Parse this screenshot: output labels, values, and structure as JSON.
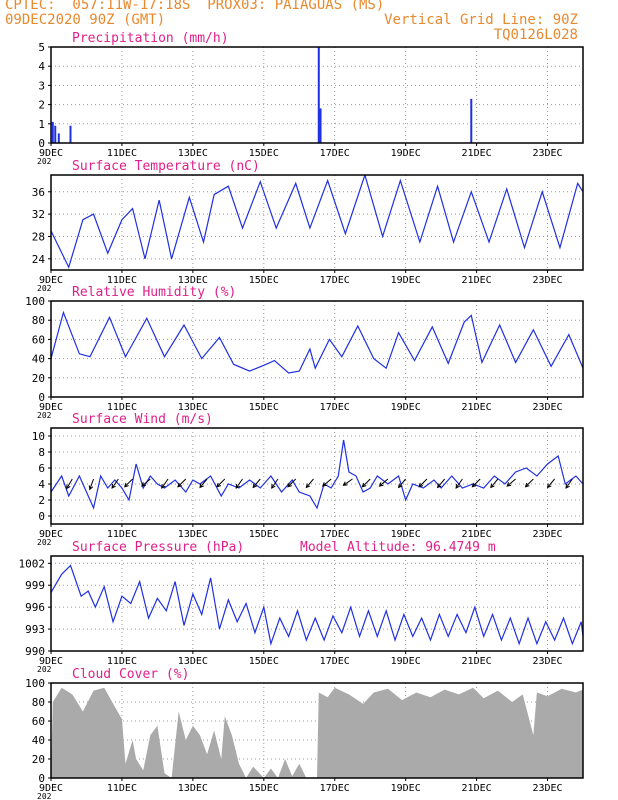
{
  "header": {
    "line1": "CPTEC:  057:11W-17:18S  PROX03: PAIAGUAS (MS)",
    "line2": "09DEC2020 90Z (GMT)",
    "grid_note": "Vertical Grid Line: 90Z",
    "code": "TQ0126L028"
  },
  "colors": {
    "header": "#e8892e",
    "title": "#e0208a",
    "series": "#2030e0",
    "bars": "#2030e0",
    "cloud": "#aaaaaa",
    "grid": "#999999"
  },
  "x_axis": {
    "start_day": 9,
    "end_day": 24,
    "tick_labels": [
      "9DEC",
      "11DEC",
      "13DEC",
      "15DEC",
      "17DEC",
      "19DEC",
      "21DEC",
      "23DEC"
    ],
    "tick_days": [
      9,
      11,
      13,
      15,
      17,
      19,
      21,
      23
    ],
    "year_stub": "202"
  },
  "chart_data": [
    {
      "type": "bar",
      "title": "Precipitation (mm/h)",
      "ylim": [
        0,
        5
      ],
      "yticks": [
        0,
        1,
        2,
        3,
        4,
        5
      ],
      "x_unit": "day of December 2020",
      "points": [
        [
          9.05,
          1.1
        ],
        [
          9.12,
          0.9
        ],
        [
          9.22,
          0.5
        ],
        [
          9.55,
          0.9
        ],
        [
          16.55,
          5.0
        ],
        [
          16.6,
          1.8
        ],
        [
          20.85,
          2.3
        ]
      ]
    },
    {
      "type": "line",
      "title": "Surface Temperature (nC)",
      "ylim": [
        22,
        39
      ],
      "yticks": [
        24,
        28,
        32,
        36
      ],
      "x_unit": "day of December 2020",
      "points": [
        [
          9.0,
          29
        ],
        [
          9.5,
          22.5
        ],
        [
          9.9,
          31
        ],
        [
          10.2,
          32
        ],
        [
          10.6,
          25
        ],
        [
          11.0,
          31
        ],
        [
          11.3,
          33
        ],
        [
          11.65,
          24
        ],
        [
          12.05,
          34.5
        ],
        [
          12.4,
          24
        ],
        [
          12.9,
          35
        ],
        [
          13.3,
          27
        ],
        [
          13.6,
          35.5
        ],
        [
          14.0,
          37
        ],
        [
          14.4,
          29.5
        ],
        [
          14.9,
          37.8
        ],
        [
          15.35,
          29.5
        ],
        [
          15.9,
          37.5
        ],
        [
          16.3,
          29.5
        ],
        [
          16.8,
          38
        ],
        [
          17.3,
          28.5
        ],
        [
          17.85,
          39
        ],
        [
          18.35,
          28
        ],
        [
          18.85,
          38
        ],
        [
          19.4,
          27
        ],
        [
          19.9,
          37
        ],
        [
          20.35,
          27
        ],
        [
          20.85,
          36
        ],
        [
          21.35,
          27
        ],
        [
          21.85,
          36.5
        ],
        [
          22.35,
          26
        ],
        [
          22.85,
          36
        ],
        [
          23.35,
          26
        ],
        [
          23.85,
          37.5
        ],
        [
          24.0,
          36
        ]
      ]
    },
    {
      "type": "line",
      "title": "Relative Humidity (%)",
      "ylim": [
        0,
        100
      ],
      "yticks": [
        0,
        20,
        40,
        60,
        80,
        100
      ],
      "x_unit": "day of December 2020",
      "points": [
        [
          9.0,
          40
        ],
        [
          9.35,
          88
        ],
        [
          9.8,
          45
        ],
        [
          10.1,
          42
        ],
        [
          10.65,
          83
        ],
        [
          11.1,
          42
        ],
        [
          11.7,
          82
        ],
        [
          12.2,
          42
        ],
        [
          12.75,
          75
        ],
        [
          13.25,
          40
        ],
        [
          13.75,
          62
        ],
        [
          14.15,
          34
        ],
        [
          14.6,
          27
        ],
        [
          15.0,
          33
        ],
        [
          15.3,
          38
        ],
        [
          15.7,
          25
        ],
        [
          16.0,
          27
        ],
        [
          16.3,
          50
        ],
        [
          16.45,
          30
        ],
        [
          16.85,
          60
        ],
        [
          17.2,
          42
        ],
        [
          17.65,
          74
        ],
        [
          18.1,
          40
        ],
        [
          18.45,
          30
        ],
        [
          18.8,
          67
        ],
        [
          19.25,
          38
        ],
        [
          19.75,
          73
        ],
        [
          20.2,
          35
        ],
        [
          20.65,
          78
        ],
        [
          20.85,
          85
        ],
        [
          21.15,
          36
        ],
        [
          21.65,
          75
        ],
        [
          22.1,
          36
        ],
        [
          22.6,
          70
        ],
        [
          23.1,
          32
        ],
        [
          23.6,
          65
        ],
        [
          24.0,
          30
        ]
      ]
    },
    {
      "type": "line",
      "title": "Surface Wind (m/s)",
      "ylim": [
        -1,
        11
      ],
      "yticks": [
        0,
        2,
        4,
        6,
        8,
        10
      ],
      "x_unit": "day of December 2020",
      "points": [
        [
          9.0,
          3
        ],
        [
          9.3,
          5
        ],
        [
          9.5,
          2.5
        ],
        [
          9.8,
          5
        ],
        [
          10.0,
          3
        ],
        [
          10.2,
          1
        ],
        [
          10.4,
          5
        ],
        [
          10.6,
          3.5
        ],
        [
          10.8,
          4.5
        ],
        [
          11.0,
          3.5
        ],
        [
          11.2,
          2
        ],
        [
          11.4,
          6.5
        ],
        [
          11.6,
          3.5
        ],
        [
          11.8,
          5
        ],
        [
          12.0,
          4
        ],
        [
          12.2,
          3.5
        ],
        [
          12.5,
          4.5
        ],
        [
          12.8,
          3
        ],
        [
          13.0,
          4.5
        ],
        [
          13.2,
          4
        ],
        [
          13.5,
          5
        ],
        [
          13.8,
          2.5
        ],
        [
          14.0,
          4
        ],
        [
          14.3,
          3.5
        ],
        [
          14.6,
          4.5
        ],
        [
          14.9,
          3.5
        ],
        [
          15.2,
          5
        ],
        [
          15.5,
          3
        ],
        [
          15.8,
          4.5
        ],
        [
          16.0,
          3
        ],
        [
          16.3,
          2.5
        ],
        [
          16.5,
          1
        ],
        [
          16.7,
          4
        ],
        [
          16.9,
          3.5
        ],
        [
          17.1,
          5
        ],
        [
          17.25,
          9.5
        ],
        [
          17.4,
          5.5
        ],
        [
          17.6,
          5
        ],
        [
          17.8,
          3
        ],
        [
          18.0,
          3.5
        ],
        [
          18.2,
          5
        ],
        [
          18.5,
          4
        ],
        [
          18.8,
          5
        ],
        [
          19.0,
          2
        ],
        [
          19.2,
          4
        ],
        [
          19.5,
          3.5
        ],
        [
          19.8,
          4.5
        ],
        [
          20.0,
          3.5
        ],
        [
          20.3,
          5
        ],
        [
          20.6,
          3.5
        ],
        [
          20.9,
          4
        ],
        [
          21.2,
          3.5
        ],
        [
          21.5,
          5
        ],
        [
          21.8,
          4
        ],
        [
          22.1,
          5.5
        ],
        [
          22.4,
          6
        ],
        [
          22.7,
          5
        ],
        [
          23.0,
          6.5
        ],
        [
          23.3,
          7.5
        ],
        [
          23.5,
          4
        ],
        [
          23.8,
          5
        ],
        [
          24.0,
          4
        ]
      ],
      "arrows": [
        [
          9.6,
          210
        ],
        [
          10.2,
          200
        ],
        [
          10.9,
          215
        ],
        [
          11.3,
          225
        ],
        [
          11.8,
          230
        ],
        [
          12.3,
          215
        ],
        [
          12.8,
          225
        ],
        [
          13.4,
          220
        ],
        [
          13.9,
          225
        ],
        [
          14.4,
          215
        ],
        [
          14.9,
          220
        ],
        [
          15.4,
          215
        ],
        [
          15.9,
          225
        ],
        [
          16.4,
          220
        ],
        [
          16.9,
          230
        ],
        [
          17.5,
          235
        ],
        [
          18.0,
          225
        ],
        [
          18.5,
          230
        ],
        [
          19.0,
          220
        ],
        [
          19.6,
          225
        ],
        [
          20.1,
          220
        ],
        [
          20.6,
          215
        ],
        [
          21.1,
          225
        ],
        [
          21.6,
          220
        ],
        [
          22.1,
          230
        ],
        [
          22.6,
          225
        ],
        [
          23.2,
          220
        ],
        [
          23.7,
          215
        ]
      ]
    },
    {
      "type": "line",
      "title": "Surface Pressure (hPa)",
      "annotation": "Model Altitude: 96.4749 m",
      "ylim": [
        990,
        1003
      ],
      "yticks": [
        990,
        993,
        996,
        999,
        1002
      ],
      "x_unit": "day of December 2020",
      "points": [
        [
          9.0,
          998
        ],
        [
          9.3,
          1000.5
        ],
        [
          9.55,
          1001.7
        ],
        [
          9.85,
          997.5
        ],
        [
          10.05,
          998.2
        ],
        [
          10.25,
          996
        ],
        [
          10.5,
          998.8
        ],
        [
          10.75,
          994
        ],
        [
          11.0,
          997.5
        ],
        [
          11.25,
          996.5
        ],
        [
          11.5,
          999.5
        ],
        [
          11.75,
          994.5
        ],
        [
          12.0,
          997.2
        ],
        [
          12.25,
          995.5
        ],
        [
          12.5,
          999.5
        ],
        [
          12.75,
          993.5
        ],
        [
          13.0,
          997.8
        ],
        [
          13.25,
          995
        ],
        [
          13.5,
          1000
        ],
        [
          13.75,
          993
        ],
        [
          14.0,
          997
        ],
        [
          14.25,
          994
        ],
        [
          14.5,
          996.5
        ],
        [
          14.75,
          992.5
        ],
        [
          15.0,
          996
        ],
        [
          15.2,
          991
        ],
        [
          15.45,
          994.5
        ],
        [
          15.7,
          992
        ],
        [
          15.95,
          995.5
        ],
        [
          16.2,
          991.5
        ],
        [
          16.45,
          994.5
        ],
        [
          16.7,
          991.5
        ],
        [
          16.95,
          994.8
        ],
        [
          17.2,
          992.5
        ],
        [
          17.45,
          996
        ],
        [
          17.7,
          992
        ],
        [
          17.95,
          995.5
        ],
        [
          18.2,
          992
        ],
        [
          18.45,
          995.5
        ],
        [
          18.7,
          991.5
        ],
        [
          18.95,
          995
        ],
        [
          19.2,
          992
        ],
        [
          19.45,
          994.5
        ],
        [
          19.7,
          991.5
        ],
        [
          19.95,
          995
        ],
        [
          20.2,
          992
        ],
        [
          20.45,
          995
        ],
        [
          20.7,
          992.5
        ],
        [
          20.95,
          996
        ],
        [
          21.2,
          992
        ],
        [
          21.45,
          995
        ],
        [
          21.7,
          991.5
        ],
        [
          21.95,
          994.5
        ],
        [
          22.2,
          991
        ],
        [
          22.45,
          994.5
        ],
        [
          22.7,
          991
        ],
        [
          22.95,
          994
        ],
        [
          23.2,
          991.5
        ],
        [
          23.45,
          994.5
        ],
        [
          23.7,
          991
        ],
        [
          23.95,
          994
        ],
        [
          24.0,
          992
        ]
      ]
    },
    {
      "type": "area",
      "title": "Cloud Cover (%)",
      "ylim": [
        0,
        100
      ],
      "yticks": [
        0,
        20,
        40,
        60,
        80,
        100
      ],
      "x_unit": "day of December 2020",
      "points": [
        [
          9.0,
          0
        ],
        [
          9.05,
          80
        ],
        [
          9.3,
          95
        ],
        [
          9.6,
          88
        ],
        [
          9.9,
          70
        ],
        [
          10.2,
          92
        ],
        [
          10.5,
          95
        ],
        [
          10.8,
          75
        ],
        [
          11.0,
          62
        ],
        [
          11.1,
          15
        ],
        [
          11.3,
          40
        ],
        [
          11.4,
          20
        ],
        [
          11.6,
          8
        ],
        [
          11.8,
          45
        ],
        [
          12.0,
          55
        ],
        [
          12.2,
          5
        ],
        [
          12.4,
          0
        ],
        [
          12.5,
          35
        ],
        [
          12.6,
          70
        ],
        [
          12.8,
          40
        ],
        [
          13.0,
          55
        ],
        [
          13.2,
          45
        ],
        [
          13.4,
          25
        ],
        [
          13.6,
          50
        ],
        [
          13.8,
          20
        ],
        [
          13.9,
          65
        ],
        [
          14.1,
          45
        ],
        [
          14.3,
          15
        ],
        [
          14.5,
          0
        ],
        [
          14.7,
          12
        ],
        [
          15.0,
          0
        ],
        [
          15.2,
          10
        ],
        [
          15.4,
          0
        ],
        [
          15.6,
          20
        ],
        [
          15.8,
          2
        ],
        [
          16.0,
          15
        ],
        [
          16.2,
          0
        ],
        [
          16.5,
          0
        ],
        [
          16.55,
          90
        ],
        [
          16.8,
          85
        ],
        [
          17.0,
          95
        ],
        [
          17.4,
          88
        ],
        [
          17.8,
          78
        ],
        [
          18.1,
          90
        ],
        [
          18.5,
          94
        ],
        [
          18.9,
          82
        ],
        [
          19.3,
          90
        ],
        [
          19.7,
          85
        ],
        [
          20.1,
          93
        ],
        [
          20.5,
          88
        ],
        [
          20.9,
          95
        ],
        [
          21.2,
          84
        ],
        [
          21.6,
          92
        ],
        [
          22.0,
          80
        ],
        [
          22.3,
          88
        ],
        [
          22.6,
          45
        ],
        [
          22.7,
          90
        ],
        [
          23.0,
          86
        ],
        [
          23.4,
          94
        ],
        [
          23.8,
          90
        ],
        [
          24.0,
          93
        ]
      ]
    }
  ]
}
